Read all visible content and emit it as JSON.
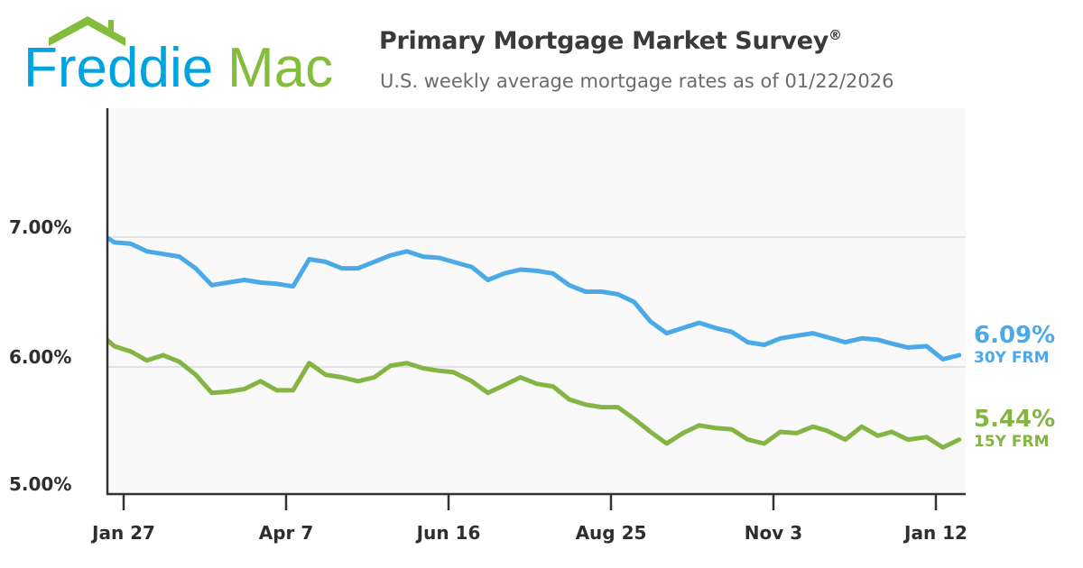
{
  "logo": {
    "text_part1": "Freddie",
    "text_part2": "Mac",
    "blue": "#00a3e0",
    "green": "#84bd3c"
  },
  "header": {
    "title": "Primary Mortgage Market Survey",
    "title_mark": "®",
    "subtitle": "U.S. weekly average mortgage rates as of 01/22/2026"
  },
  "chart_data": {
    "type": "line",
    "title": "Primary Mortgage Market Survey®",
    "subtitle": "U.S. weekly average mortgage rates as of 01/22/2026",
    "ylim": [
      5.0,
      8.0
    ],
    "y_ticks": [
      {
        "value": 7.0,
        "label": "7.00%"
      },
      {
        "value": 6.0,
        "label": "6.00%"
      },
      {
        "value": 5.0,
        "label": "5.00%"
      }
    ],
    "x_ticks": [
      {
        "date": "2025-01-27",
        "label": "Jan 27"
      },
      {
        "date": "2025-04-07",
        "label": "Apr 7"
      },
      {
        "date": "2025-06-16",
        "label": "Jun 16"
      },
      {
        "date": "2025-08-25",
        "label": "Aug 25"
      },
      {
        "date": "2025-11-03",
        "label": "Nov 3"
      },
      {
        "date": "2026-01-12",
        "label": "Jan 12"
      }
    ],
    "grid": "horizontal",
    "x": [
      "2025-01-16",
      "2025-01-23",
      "2025-01-30",
      "2025-02-06",
      "2025-02-13",
      "2025-02-20",
      "2025-02-27",
      "2025-03-06",
      "2025-03-13",
      "2025-03-20",
      "2025-03-27",
      "2025-04-03",
      "2025-04-10",
      "2025-04-17",
      "2025-04-24",
      "2025-05-01",
      "2025-05-08",
      "2025-05-15",
      "2025-05-22",
      "2025-05-29",
      "2025-06-05",
      "2025-06-12",
      "2025-06-18",
      "2025-06-26",
      "2025-07-03",
      "2025-07-10",
      "2025-07-17",
      "2025-07-24",
      "2025-07-31",
      "2025-08-07",
      "2025-08-14",
      "2025-08-21",
      "2025-08-28",
      "2025-09-04",
      "2025-09-11",
      "2025-09-18",
      "2025-09-25",
      "2025-10-02",
      "2025-10-09",
      "2025-10-16",
      "2025-10-23",
      "2025-10-30",
      "2025-11-06",
      "2025-11-13",
      "2025-11-20",
      "2025-11-26",
      "2025-12-04",
      "2025-12-11",
      "2025-12-18",
      "2025-12-24",
      "2025-12-31",
      "2026-01-08",
      "2026-01-15",
      "2026-01-22"
    ],
    "series": [
      {
        "name": "30Y FRM",
        "latest_label": "6.09%",
        "color": "#4ba9e8",
        "values": [
          7.04,
          6.96,
          6.95,
          6.89,
          6.87,
          6.85,
          6.76,
          6.63,
          6.65,
          6.67,
          6.65,
          6.64,
          6.62,
          6.83,
          6.81,
          6.76,
          6.76,
          6.81,
          6.86,
          6.89,
          6.85,
          6.84,
          6.81,
          6.77,
          6.67,
          6.72,
          6.75,
          6.74,
          6.72,
          6.63,
          6.58,
          6.58,
          6.56,
          6.5,
          6.35,
          6.26,
          6.3,
          6.34,
          6.3,
          6.27,
          6.19,
          6.17,
          6.22,
          6.24,
          6.26,
          6.23,
          6.19,
          6.22,
          6.21,
          6.18,
          6.15,
          6.16,
          6.06,
          6.09
        ]
      },
      {
        "name": "15Y FRM",
        "latest_label": "5.44%",
        "color": "#84b544",
        "values": [
          6.27,
          6.16,
          6.12,
          6.05,
          6.09,
          6.04,
          5.94,
          5.8,
          5.81,
          5.83,
          5.89,
          5.82,
          5.82,
          6.03,
          5.94,
          5.92,
          5.89,
          5.92,
          6.01,
          6.03,
          5.99,
          5.97,
          5.96,
          5.89,
          5.8,
          5.86,
          5.92,
          5.87,
          5.85,
          5.75,
          5.71,
          5.69,
          5.69,
          5.6,
          5.5,
          5.41,
          5.49,
          5.55,
          5.53,
          5.52,
          5.44,
          5.41,
          5.5,
          5.49,
          5.54,
          5.51,
          5.44,
          5.54,
          5.47,
          5.5,
          5.44,
          5.46,
          5.38,
          5.44
        ]
      }
    ]
  }
}
